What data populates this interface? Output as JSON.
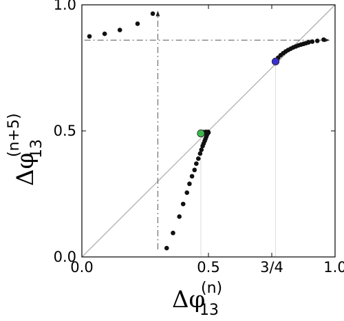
{
  "chart_data": {
    "type": "scatter",
    "title": "",
    "xlabel": {
      "symbol": "Δφ",
      "subscript": "13",
      "superscript": "(n)"
    },
    "ylabel": {
      "symbol": "Δφ",
      "subscript": "13",
      "superscript": "(n+5)"
    },
    "xlim": [
      0,
      1
    ],
    "ylim": [
      0,
      1
    ],
    "x_ticks": [
      {
        "value": 0.0,
        "label": "0.0"
      },
      {
        "value": 0.5,
        "label": "0.5"
      },
      {
        "value": 0.75,
        "label": "3/4"
      },
      {
        "value": 1.0,
        "label": "1.0"
      }
    ],
    "y_ticks": [
      {
        "value": 0.0,
        "label": "0.0"
      },
      {
        "value": 0.5,
        "label": "0.5"
      },
      {
        "value": 1.0,
        "label": "1.0"
      }
    ],
    "grid": false,
    "diagonal": {
      "from": [
        0,
        0
      ],
      "to": [
        1,
        1
      ],
      "color": "#b0b0b0"
    },
    "fixed_points": [
      {
        "x": 0.47,
        "y": 0.49,
        "color": "#3cb84a"
      },
      {
        "x": 0.765,
        "y": 0.775,
        "color": "#3a2fcf"
      }
    ],
    "guides": [
      {
        "path": [
          [
            0.3,
            0.03
          ],
          [
            0.3,
            0.96
          ]
        ],
        "arrow": "up"
      },
      {
        "path": [
          [
            0.01,
            0.86
          ],
          [
            0.96,
            0.86
          ]
        ],
        "arrow": "right"
      }
    ],
    "series": [
      {
        "color": "#111111",
        "points": [
          [
            0.03,
            0.875
          ],
          [
            0.09,
            0.885
          ],
          [
            0.15,
            0.9
          ],
          [
            0.22,
            0.925
          ],
          [
            0.28,
            0.965
          ],
          [
            0.335,
            0.035
          ],
          [
            0.36,
            0.095
          ],
          [
            0.385,
            0.16
          ],
          [
            0.4,
            0.21
          ],
          [
            0.415,
            0.255
          ],
          [
            0.425,
            0.29
          ],
          [
            0.435,
            0.32
          ],
          [
            0.445,
            0.345
          ],
          [
            0.452,
            0.37
          ],
          [
            0.46,
            0.39
          ],
          [
            0.467,
            0.41
          ],
          [
            0.472,
            0.425
          ],
          [
            0.477,
            0.44
          ],
          [
            0.481,
            0.45
          ],
          [
            0.485,
            0.46
          ],
          [
            0.488,
            0.468
          ],
          [
            0.491,
            0.476
          ],
          [
            0.493,
            0.482
          ],
          [
            0.495,
            0.487
          ],
          [
            0.497,
            0.491
          ],
          [
            0.498,
            0.494
          ],
          [
            0.499,
            0.496
          ],
          [
            0.48,
            0.495
          ],
          [
            0.485,
            0.495
          ],
          [
            0.49,
            0.496
          ],
          [
            0.493,
            0.495
          ],
          [
            0.496,
            0.494
          ],
          [
            0.5,
            0.493
          ],
          [
            0.775,
            0.79
          ],
          [
            0.785,
            0.8
          ],
          [
            0.795,
            0.808
          ],
          [
            0.805,
            0.815
          ],
          [
            0.815,
            0.821
          ],
          [
            0.825,
            0.826
          ],
          [
            0.835,
            0.831
          ],
          [
            0.845,
            0.835
          ],
          [
            0.855,
            0.839
          ],
          [
            0.865,
            0.842
          ],
          [
            0.875,
            0.845
          ],
          [
            0.885,
            0.848
          ],
          [
            0.895,
            0.851
          ],
          [
            0.91,
            0.854
          ],
          [
            0.93,
            0.857
          ],
          [
            0.955,
            0.862
          ]
        ]
      }
    ]
  }
}
